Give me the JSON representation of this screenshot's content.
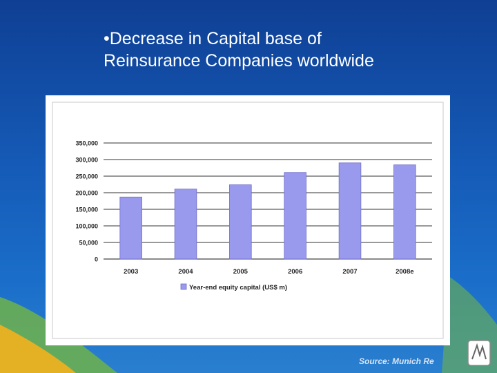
{
  "slide": {
    "title_line1": "•Decrease in Capital base of",
    "title_line2": "Reinsurance Companies worldwide",
    "source": "Source: Munich Re"
  },
  "colors": {
    "bar_fill": "#9999ee",
    "bar_stroke": "#6f6fc8",
    "background": "#155bb7",
    "accent_green": "#6fb24a"
  },
  "chart_data": {
    "type": "bar",
    "categories": [
      "2003",
      "2004",
      "2005",
      "2006",
      "2007",
      "2008e"
    ],
    "series": [
      {
        "name": "Year-end equity capital (US$ m)",
        "values": [
          187000,
          211000,
          224000,
          261000,
          290000,
          284000
        ]
      }
    ],
    "yticks": [
      "0",
      "50,000",
      "100,000",
      "150,000",
      "200,000",
      "250,000",
      "300,000",
      "350,000"
    ],
    "ylim": [
      0,
      350000
    ],
    "grid": true,
    "legend_position": "bottom"
  }
}
